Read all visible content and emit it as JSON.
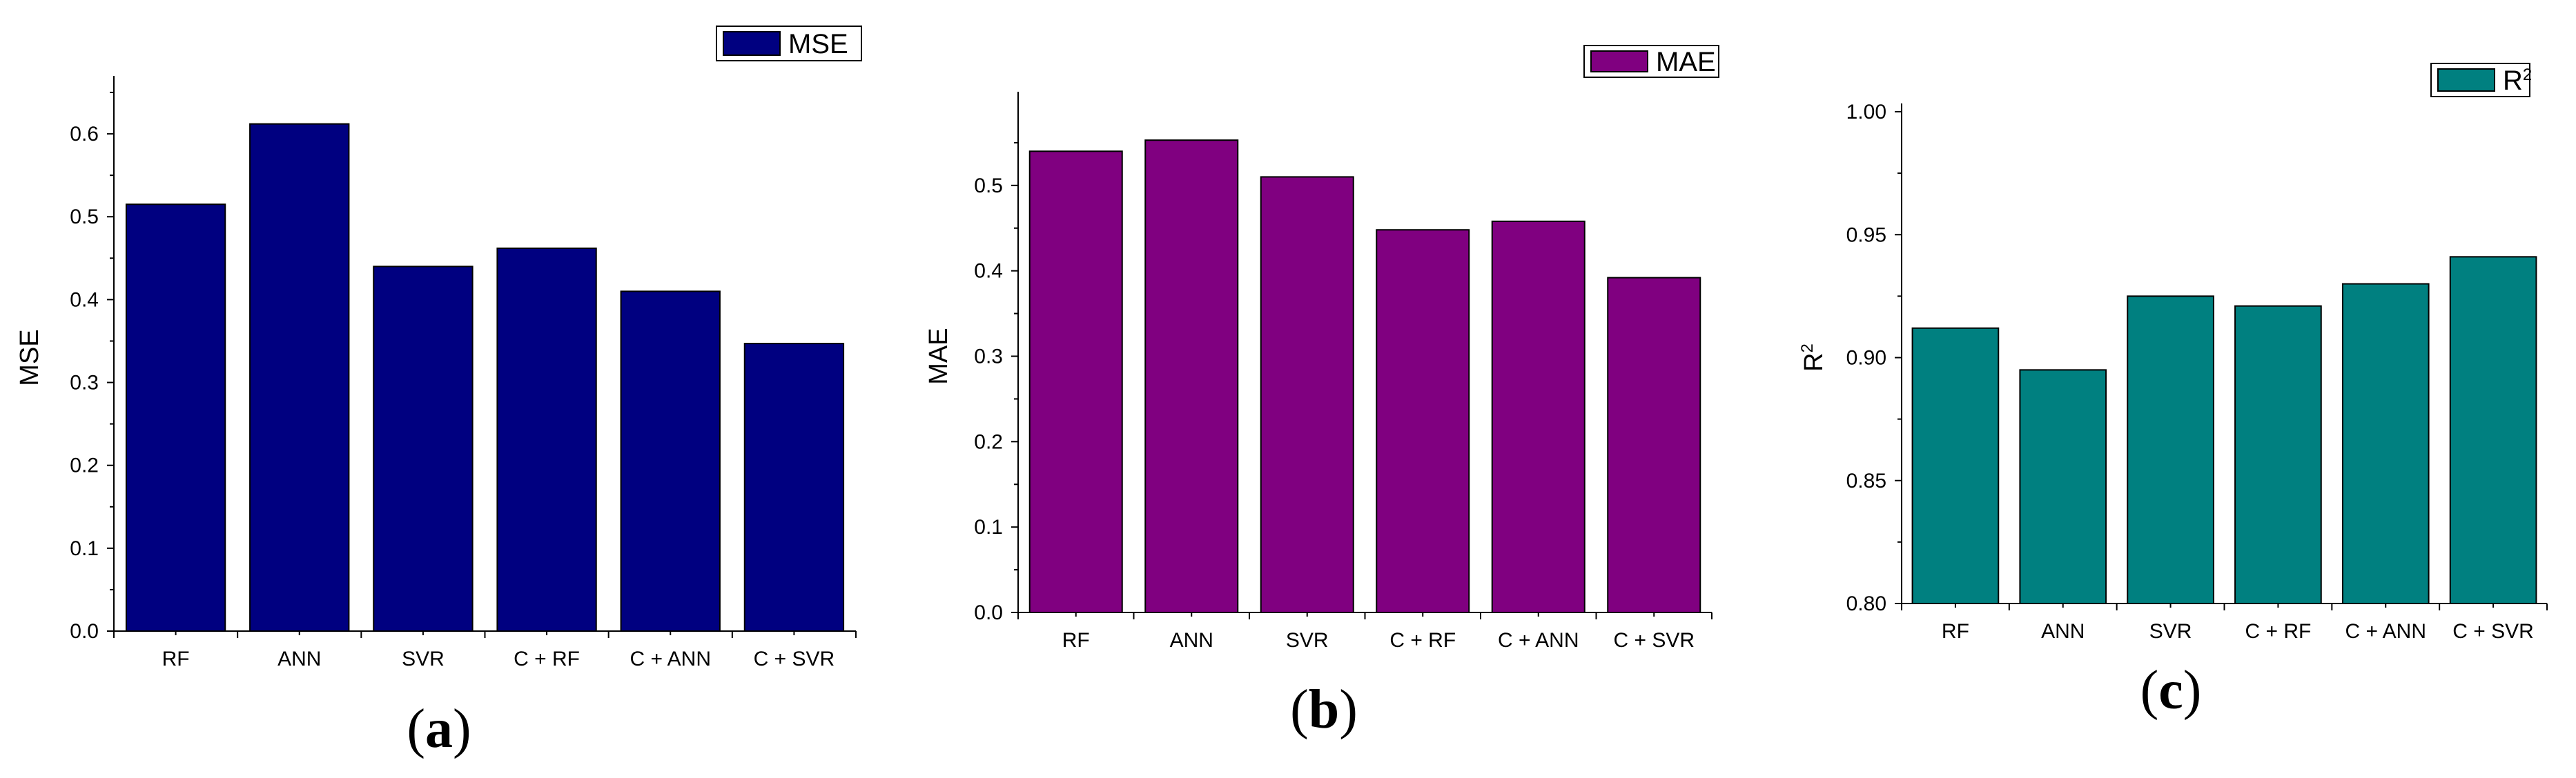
{
  "chart_data": [
    {
      "type": "bar",
      "panel_label": "a",
      "categories": [
        "RF",
        "ANN",
        "SVR",
        "C + RF",
        "C + ANN",
        "C + SVR"
      ],
      "series": [
        {
          "name": "MSE",
          "values": [
            0.515,
            0.612,
            0.44,
            0.462,
            0.41,
            0.347
          ],
          "color": "#000080"
        }
      ],
      "ylabel": "MSE",
      "ylim": [
        0,
        0.66
      ],
      "yticks": [
        "0.0",
        "0.1",
        "0.2",
        "0.3",
        "0.4",
        "0.5",
        "0.6"
      ],
      "legend_position": "top-right",
      "grid": false
    },
    {
      "type": "bar",
      "panel_label": "b",
      "categories": [
        "RF",
        "ANN",
        "SVR",
        "C + RF",
        "C + ANN",
        "C + SVR"
      ],
      "series": [
        {
          "name": "MAE",
          "values": [
            0.54,
            0.553,
            0.51,
            0.448,
            0.458,
            0.392
          ],
          "color": "#800080"
        }
      ],
      "ylabel": "MAE",
      "ylim": [
        0,
        0.6
      ],
      "yticks": [
        "0.0",
        "0.1",
        "0.2",
        "0.3",
        "0.4",
        "0.5"
      ],
      "legend_position": "top-right",
      "grid": false
    },
    {
      "type": "bar",
      "panel_label": "c",
      "categories": [
        "RF",
        "ANN",
        "SVR",
        "C + RF",
        "C + ANN",
        "C + SVR"
      ],
      "series": [
        {
          "name": "R",
          "values": [
            0.912,
            0.895,
            0.925,
            0.921,
            0.93,
            0.941
          ],
          "color": "#008080"
        }
      ],
      "ylabel": "R",
      "label_superscript": "2",
      "ylim": [
        0.8,
        1.0
      ],
      "yticks": [
        "0.80",
        "0.85",
        "0.90",
        "0.95",
        "1.00"
      ],
      "legend_position": "top-right",
      "grid": false
    }
  ]
}
